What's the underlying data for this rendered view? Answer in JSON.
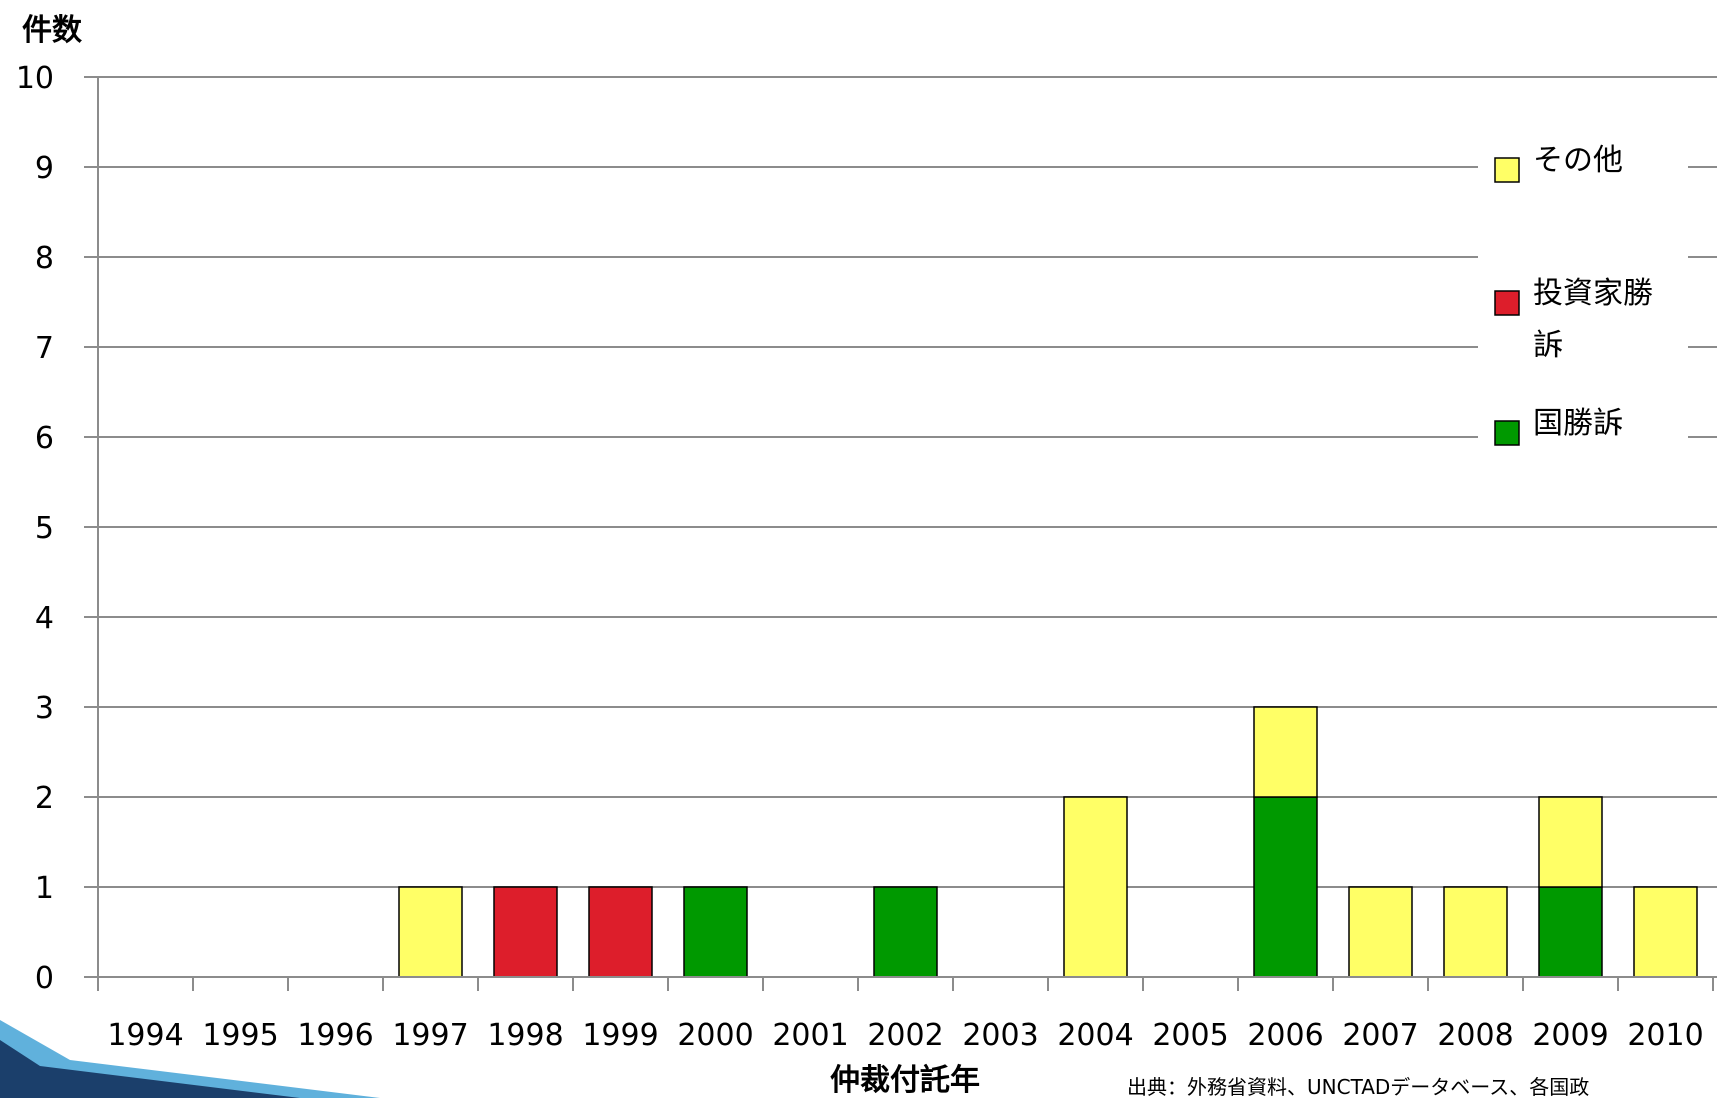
{
  "chart_data": {
    "type": "bar",
    "stacked": true,
    "ylabel": "件数",
    "xlabel": "仲裁付託年",
    "ylim": [
      0,
      10
    ],
    "yticks": [
      0,
      1,
      2,
      3,
      4,
      5,
      6,
      7,
      8,
      9,
      10
    ],
    "grid": true,
    "legend_position": "right",
    "categories": [
      "1994",
      "1995",
      "1996",
      "1997",
      "1998",
      "1999",
      "2000",
      "2001",
      "2002",
      "2003",
      "2004",
      "2005",
      "2006",
      "2007",
      "2008",
      "2009",
      "2010"
    ],
    "series": [
      {
        "name": "国勝訴",
        "color": "#009900",
        "values": [
          0,
          0,
          0,
          0,
          0,
          0,
          1,
          0,
          1,
          0,
          0,
          0,
          2,
          0,
          0,
          1,
          0
        ]
      },
      {
        "name": "投資家勝訴",
        "color": "#dd1e2b",
        "values": [
          0,
          0,
          0,
          0,
          1,
          1,
          0,
          0,
          0,
          0,
          0,
          0,
          0,
          0,
          0,
          0,
          0
        ]
      },
      {
        "name": "その他",
        "color": "#ffff66",
        "values": [
          0,
          0,
          0,
          1,
          0,
          0,
          0,
          0,
          0,
          0,
          2,
          0,
          1,
          1,
          1,
          1,
          1
        ]
      }
    ],
    "legend_order": [
      "その他",
      "投資家勝訴",
      "国勝訴"
    ],
    "legend_labels": [
      [
        "その他"
      ],
      [
        "投資家勝",
        "訴"
      ],
      [
        "国勝訴"
      ]
    ],
    "source": "出典：外務省資料、UNCTADデータベース、各国政"
  },
  "colors": {
    "grid": "#8c8c8c",
    "axis": "#8c8c8c",
    "bar_outline": "#000000",
    "corner_dark": "#1b3f6b",
    "corner_light": "#4fa8d8"
  }
}
